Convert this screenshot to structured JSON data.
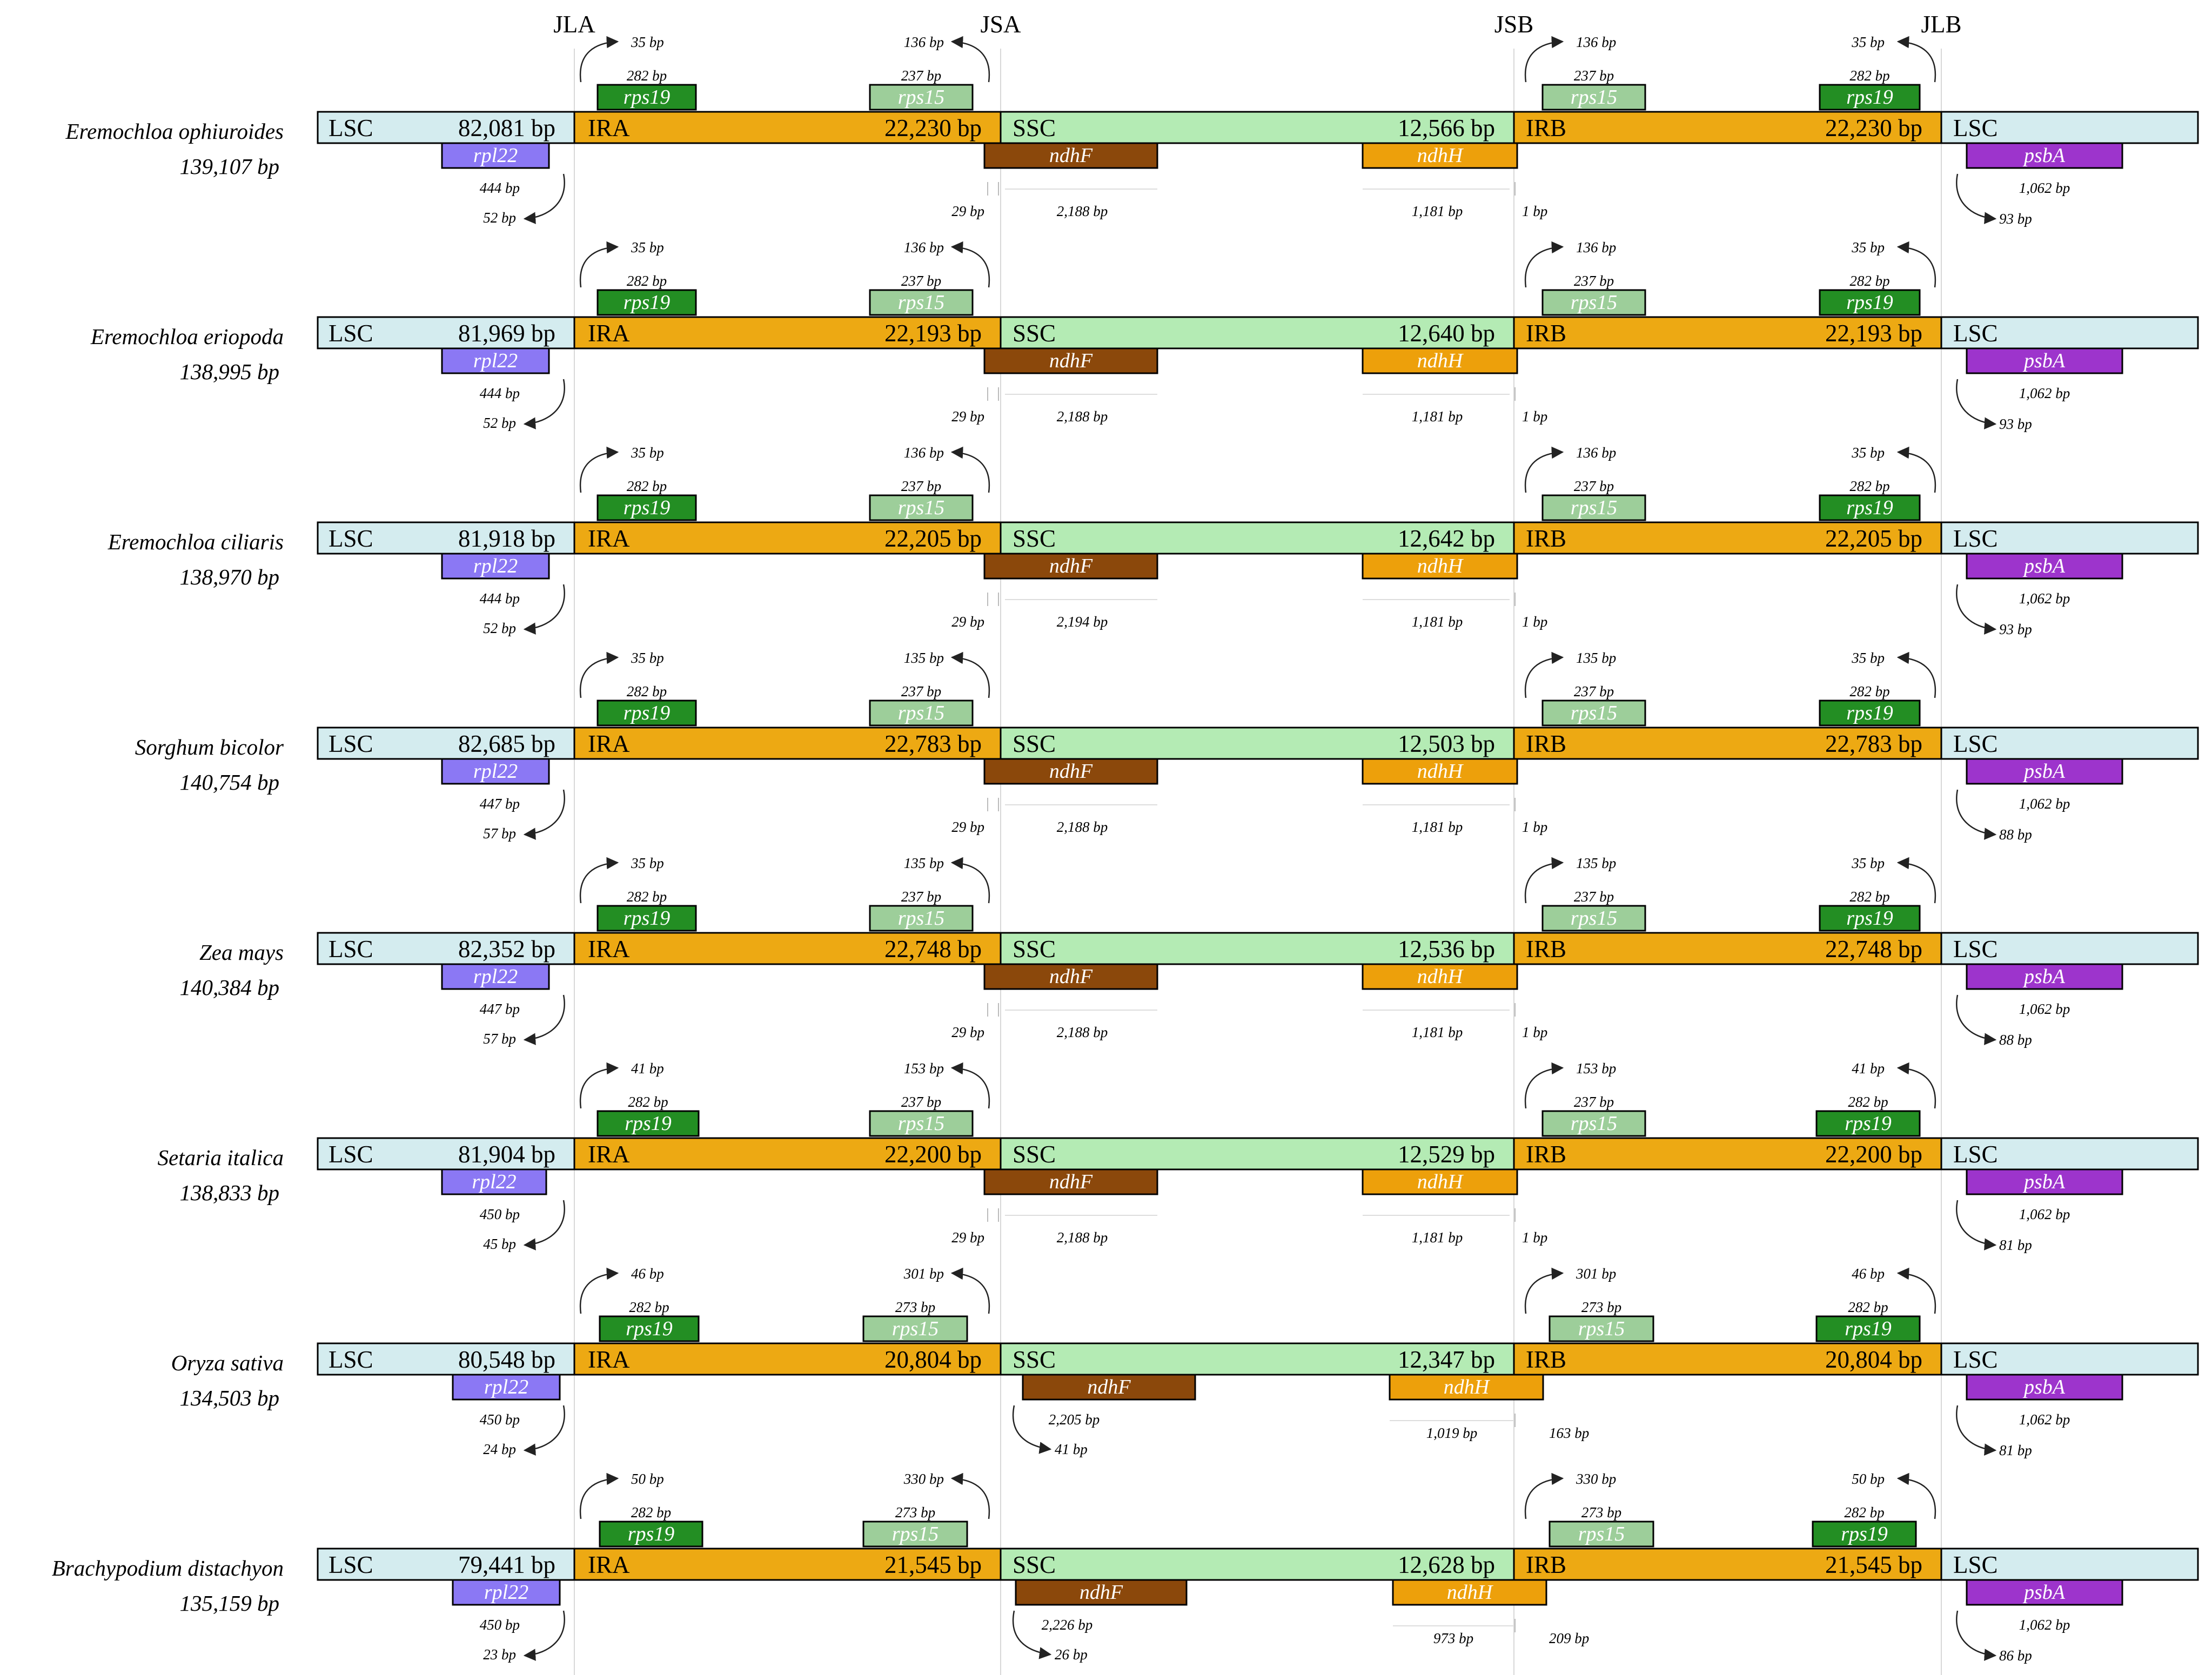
{
  "junctions": [
    "JLA",
    "JSA",
    "JSB",
    "JLB"
  ],
  "colors": {
    "LSC": "#d4ecef",
    "IR": "#eda913",
    "SSC": "#b4ebb4",
    "rps19": "#238e23",
    "rps15": "#9dce9a",
    "rpl22": "#8b78f4",
    "ndhF": "#8b480b",
    "ndhH": "#eda00b",
    "psbA": "#9d34cc"
  },
  "genomes": [
    {
      "species": "Eremochloa ophiuroides",
      "total": "139,107 bp",
      "regions": {
        "LSC": "LSC",
        "IRA": "IRA",
        "SSC": "SSC",
        "IRB": "IRB",
        "LSC2": "LSC"
      },
      "sizes": {
        "LSC": "82,081 bp",
        "IR": "22,230 bp",
        "SSC": "12,566 bp",
        "IRB": "22,230 bp"
      },
      "genes": {
        "rps19": "rps19",
        "rps15": "rps15",
        "rpl22": "rpl22",
        "ndhF": "ndhF",
        "ndhH": "ndhH",
        "psbA": "psbA"
      },
      "labels": {
        "rps19_a_len": "282 bp",
        "rps19_a_over": "35 bp",
        "rps15_a_len": "237 bp",
        "rps15_a_over": "136 bp",
        "rps15_b_len": "237 bp",
        "rps15_b_over": "136 bp",
        "rps19_b_len": "282 bp",
        "rps19_b_over": "35 bp",
        "rpl22_len": "444 bp",
        "rpl22_over": "52 bp",
        "ndhF_a": "29 bp",
        "ndhF_len": "2,188 bp",
        "ndhH_len": "1,181 bp",
        "ndhH_b": "1 bp",
        "psbA_len": "1,062 bp",
        "psbA_over": "93 bp"
      }
    },
    {
      "species": "Eremochloa eriopoda",
      "total": "138,995 bp",
      "regions": {
        "LSC": "LSC",
        "IRA": "IRA",
        "SSC": "SSC",
        "IRB": "IRB",
        "LSC2": "LSC"
      },
      "sizes": {
        "LSC": "81,969 bp",
        "IR": "22,193 bp",
        "SSC": "12,640 bp",
        "IRB": "22,193 bp"
      },
      "genes": {
        "rps19": "rps19",
        "rps15": "rps15",
        "rpl22": "rpl22",
        "ndhF": "ndhF",
        "ndhH": "ndhH",
        "psbA": "psbA"
      },
      "labels": {
        "rps19_a_len": "282 bp",
        "rps19_a_over": "35 bp",
        "rps15_a_len": "237 bp",
        "rps15_a_over": "136 bp",
        "rps15_b_len": "237 bp",
        "rps15_b_over": "136 bp",
        "rps19_b_len": "282 bp",
        "rps19_b_over": "35 bp",
        "rpl22_len": "444 bp",
        "rpl22_over": "52 bp",
        "ndhF_a": "29 bp",
        "ndhF_len": "2,188 bp",
        "ndhH_len": "1,181 bp",
        "ndhH_b": "1 bp",
        "psbA_len": "1,062 bp",
        "psbA_over": "93 bp"
      }
    },
    {
      "species": "Eremochloa ciliaris",
      "total": "138,970 bp",
      "regions": {
        "LSC": "LSC",
        "IRA": "IRA",
        "SSC": "SSC",
        "IRB": "IRB",
        "LSC2": "LSC"
      },
      "sizes": {
        "LSC": "81,918 bp",
        "IR": "22,205 bp",
        "SSC": "12,642 bp",
        "IRB": "22,205 bp"
      },
      "genes": {
        "rps19": "rps19",
        "rps15": "rps15",
        "rpl22": "rpl22",
        "ndhF": "ndhF",
        "ndhH": "ndhH",
        "psbA": "psbA"
      },
      "labels": {
        "rps19_a_len": "282 bp",
        "rps19_a_over": "35 bp",
        "rps15_a_len": "237 bp",
        "rps15_a_over": "136 bp",
        "rps15_b_len": "237 bp",
        "rps15_b_over": "136 bp",
        "rps19_b_len": "282 bp",
        "rps19_b_over": "35 bp",
        "rpl22_len": "444 bp",
        "rpl22_over": "52 bp",
        "ndhF_a": "29 bp",
        "ndhF_len": "2,194 bp",
        "ndhH_len": "1,181 bp",
        "ndhH_b": "1 bp",
        "psbA_len": "1,062 bp",
        "psbA_over": "93 bp"
      }
    },
    {
      "species": "Sorghum bicolor",
      "total": "140,754 bp",
      "regions": {
        "LSC": "LSC",
        "IRA": "IRA",
        "SSC": "SSC",
        "IRB": "IRB",
        "LSC2": "LSC"
      },
      "sizes": {
        "LSC": "82,685 bp",
        "IR": "22,783 bp",
        "SSC": "12,503 bp",
        "IRB": "22,783 bp"
      },
      "genes": {
        "rps19": "rps19",
        "rps15": "rps15",
        "rpl22": "rpl22",
        "ndhF": "ndhF",
        "ndhH": "ndhH",
        "psbA": "psbA"
      },
      "labels": {
        "rps19_a_len": "282 bp",
        "rps19_a_over": "35 bp",
        "rps15_a_len": "237 bp",
        "rps15_a_over": "135 bp",
        "rps15_b_len": "237 bp",
        "rps15_b_over": "135 bp",
        "rps19_b_len": "282 bp",
        "rps19_b_over": "35 bp",
        "rpl22_len": "447 bp",
        "rpl22_over": "57 bp",
        "ndhF_a": "29 bp",
        "ndhF_len": "2,188 bp",
        "ndhH_len": "1,181 bp",
        "ndhH_b": "1 bp",
        "psbA_len": "1,062 bp",
        "psbA_over": "88 bp"
      }
    },
    {
      "species": "Zea mays",
      "total": "140,384 bp",
      "regions": {
        "LSC": "LSC",
        "IRA": "IRA",
        "SSC": "SSC",
        "IRB": "IRB",
        "LSC2": "LSC"
      },
      "sizes": {
        "LSC": "82,352 bp",
        "IR": "22,748 bp",
        "SSC": "12,536 bp",
        "IRB": "22,748 bp"
      },
      "genes": {
        "rps19": "rps19",
        "rps15": "rps15",
        "rpl22": "rpl22",
        "ndhF": "ndhF",
        "ndhH": "ndhH",
        "psbA": "psbA"
      },
      "labels": {
        "rps19_a_len": "282 bp",
        "rps19_a_over": "35 bp",
        "rps15_a_len": "237 bp",
        "rps15_a_over": "135 bp",
        "rps15_b_len": "237 bp",
        "rps15_b_over": "135 bp",
        "rps19_b_len": "282 bp",
        "rps19_b_over": "35 bp",
        "rpl22_len": "447 bp",
        "rpl22_over": "57 bp",
        "ndhF_a": "29 bp",
        "ndhF_len": "2,188 bp",
        "ndhH_len": "1,181 bp",
        "ndhH_b": "1 bp",
        "psbA_len": "1,062 bp",
        "psbA_over": "88 bp"
      }
    },
    {
      "species": "Setaria italica",
      "total": "138,833 bp",
      "regions": {
        "LSC": "LSC",
        "IRA": "IRA",
        "SSC": "SSC",
        "IRB": "IRB",
        "LSC2": "LSC"
      },
      "sizes": {
        "LSC": "81,904 bp",
        "IR": "22,200 bp",
        "SSC": "12,529 bp",
        "IRB": "22,200 bp"
      },
      "genes": {
        "rps19": "rps19",
        "rps15": "rps15",
        "rpl22": "rpl22",
        "ndhF": "ndhF",
        "ndhH": "ndhH",
        "psbA": "psbA"
      },
      "labels": {
        "rps19_a_len": "282 bp",
        "rps19_a_over": "41 bp",
        "rps15_a_len": "237 bp",
        "rps15_a_over": "153 bp",
        "rps15_b_len": "237 bp",
        "rps15_b_over": "153 bp",
        "rps19_b_len": "282 bp",
        "rps19_b_over": "41 bp",
        "rpl22_len": "450 bp",
        "rpl22_over": "45 bp",
        "ndhF_a": "29 bp",
        "ndhF_len": "2,188 bp",
        "ndhH_len": "1,181 bp",
        "ndhH_b": "1 bp",
        "psbA_len": "1,062 bp",
        "psbA_over": "81 bp"
      }
    },
    {
      "species": "Oryza sativa",
      "total": "134,503 bp",
      "regions": {
        "LSC": "LSC",
        "IRA": "IRA",
        "SSC": "SSC",
        "IRB": "IRB",
        "LSC2": "LSC"
      },
      "sizes": {
        "LSC": "80,548 bp",
        "IR": "20,804 bp",
        "SSC": "12,347 bp",
        "IRB": "20,804 bp"
      },
      "genes": {
        "rps19": "rps19",
        "rps15": "rps15",
        "rpl22": "rpl22",
        "ndhF": "ndhF",
        "ndhH": "ndhH",
        "psbA": "psbA"
      },
      "labels": {
        "rps19_a_len": "282 bp",
        "rps19_a_over": "46 bp",
        "rps15_a_len": "273 bp",
        "rps15_a_over": "301 bp",
        "rps15_b_len": "273 bp",
        "rps15_b_over": "301 bp",
        "rps19_b_len": "282 bp",
        "rps19_b_over": "46 bp",
        "rpl22_len": "450 bp",
        "rpl22_over": "24 bp",
        "ndhF_a": "41 bp",
        "ndhF_len": "2,205 bp",
        "ndhH_len": "1,019 bp",
        "ndhH_b": "163 bp",
        "psbA_len": "1,062 bp",
        "psbA_over": "81 bp"
      }
    },
    {
      "species": "Brachypodium distachyon",
      "total": "135,159 bp",
      "regions": {
        "LSC": "LSC",
        "IRA": "IRA",
        "SSC": "SSC",
        "IRB": "IRB",
        "LSC2": "LSC"
      },
      "sizes": {
        "LSC": "79,441 bp",
        "IR": "21,545 bp",
        "SSC": "12,628 bp",
        "IRB": "21,545 bp"
      },
      "genes": {
        "rps19": "rps19",
        "rps15": "rps15",
        "rpl22": "rpl22",
        "ndhF": "ndhF",
        "ndhH": "ndhH",
        "psbA": "psbA"
      },
      "labels": {
        "rps19_a_len": "282 bp",
        "rps19_a_over": "50 bp",
        "rps15_a_len": "273 bp",
        "rps15_a_over": "330 bp",
        "rps15_b_len": "273 bp",
        "rps15_b_over": "330 bp",
        "rps19_b_len": "282 bp",
        "rps19_b_over": "50 bp",
        "rpl22_len": "450 bp",
        "rpl22_over": "23 bp",
        "ndhF_a": "26 bp",
        "ndhF_len": "2,226 bp",
        "ndhH_len": "973 bp",
        "ndhH_b": "209 bp",
        "psbA_len": "1,062 bp",
        "psbA_over": "86 bp"
      }
    }
  ]
}
